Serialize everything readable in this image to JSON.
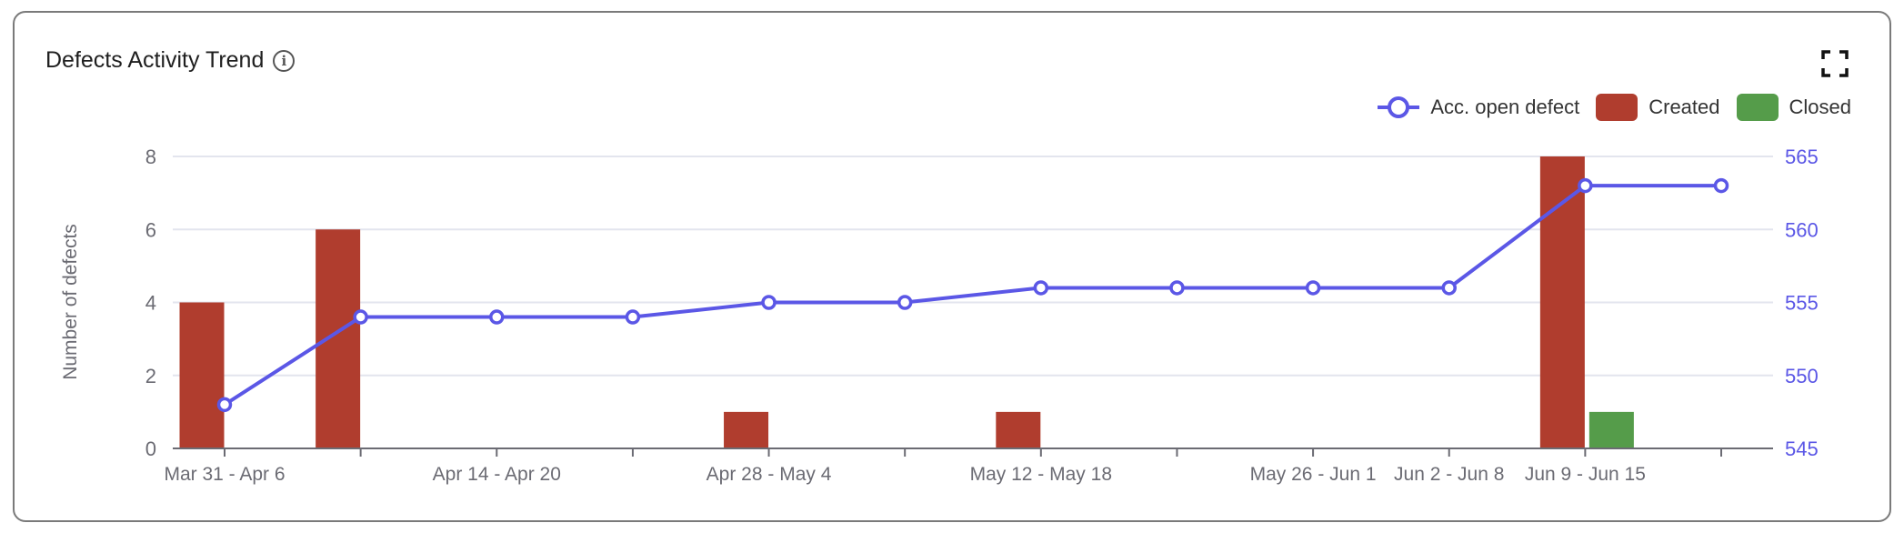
{
  "header": {
    "title": "Defects Activity Trend",
    "info_icon": "info-icon",
    "expand_icon": "expand-icon"
  },
  "chart_data": {
    "type": "bar",
    "title": "Defects Activity Trend",
    "ylabel": "Number of defects",
    "ylim": [
      0,
      8
    ],
    "yticks": [
      "0",
      "2",
      "4",
      "6",
      "8"
    ],
    "y2lim": [
      545,
      565
    ],
    "y2ticks": [
      "545",
      "550",
      "555",
      "560",
      "565"
    ],
    "grid": true,
    "legend_position": "top-right",
    "categories": [
      "Mar 31 - Apr 6",
      "",
      "Apr 14 - Apr 20",
      "",
      "Apr 28 - May 4",
      "",
      "May 12 - May 18",
      "",
      "May 26 - Jun 1",
      "Jun 2 - Jun 8",
      "Jun 9 - Jun 15",
      ""
    ],
    "series": [
      {
        "name": "Acc. open defect",
        "type": "line",
        "axis": "right",
        "color": "#5b57e6",
        "values": [
          548,
          554,
          554,
          554,
          555,
          555,
          556,
          556,
          556,
          556,
          563,
          563
        ]
      },
      {
        "name": "Created",
        "type": "bar",
        "axis": "left",
        "color": "#b03d2e",
        "values": [
          4,
          6,
          0,
          0,
          1,
          0,
          1,
          0,
          0,
          0,
          8,
          0
        ]
      },
      {
        "name": "Closed",
        "type": "bar",
        "axis": "left",
        "color": "#559c4a",
        "values": [
          0,
          0,
          0,
          0,
          0,
          0,
          0,
          0,
          0,
          0,
          1,
          0
        ]
      }
    ]
  }
}
